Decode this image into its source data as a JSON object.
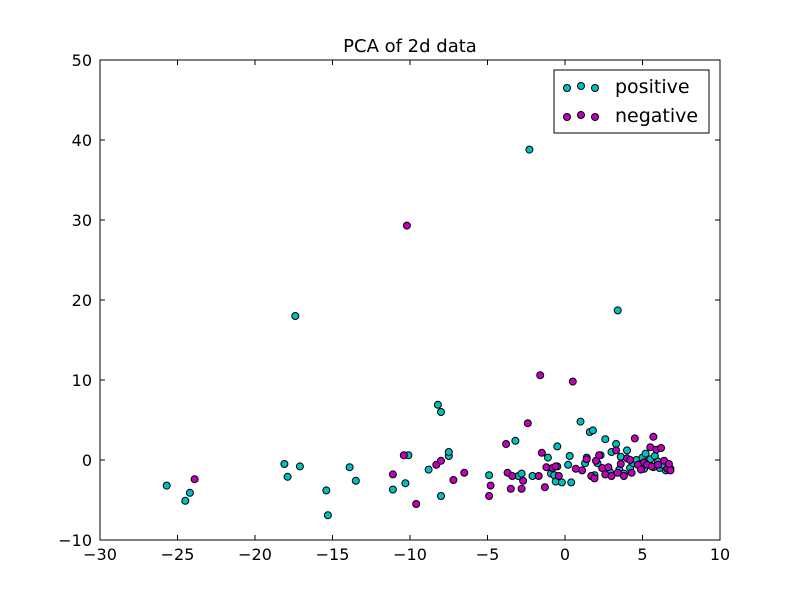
{
  "chart_data": {
    "type": "scatter",
    "title": "PCA of 2d data",
    "xlabel": "",
    "ylabel": "",
    "xlim": [
      -30,
      10
    ],
    "ylim": [
      -10,
      50
    ],
    "xticks": [
      "−30",
      "−25",
      "−20",
      "−15",
      "−10",
      "−5",
      "0",
      "5",
      "10"
    ],
    "yticks": [
      "−10",
      "0",
      "10",
      "20",
      "30",
      "40",
      "50"
    ],
    "grid": false,
    "legend_position": "top-right",
    "series": [
      {
        "name": "positive",
        "color": "#00BFBF",
        "points": [
          [
            -25.7,
            -3.2
          ],
          [
            -24.5,
            -5.1
          ],
          [
            -24.2,
            -4.1
          ],
          [
            -18.1,
            -0.5
          ],
          [
            -17.9,
            -2.1
          ],
          [
            -17.4,
            18.0
          ],
          [
            -17.1,
            -0.8
          ],
          [
            -15.4,
            -3.8
          ],
          [
            -15.3,
            -6.9
          ],
          [
            -13.9,
            -0.9
          ],
          [
            -13.5,
            -2.6
          ],
          [
            -11.1,
            -3.7
          ],
          [
            -10.3,
            -2.9
          ],
          [
            -10.1,
            0.6
          ],
          [
            -8.8,
            -1.2
          ],
          [
            -8.2,
            6.9
          ],
          [
            -8.0,
            6.0
          ],
          [
            -8.0,
            -4.5
          ],
          [
            -7.5,
            0.5
          ],
          [
            -7.5,
            1.0
          ],
          [
            -4.9,
            -1.9
          ],
          [
            -3.2,
            2.4
          ],
          [
            -3.0,
            -2.0
          ],
          [
            -2.8,
            -1.7
          ],
          [
            -2.3,
            38.8
          ],
          [
            -2.1,
            -2.0
          ],
          [
            -1.1,
            0.3
          ],
          [
            -0.9,
            -1.7
          ],
          [
            -0.7,
            -1.9
          ],
          [
            -0.6,
            -2.7
          ],
          [
            -0.5,
            -0.8
          ],
          [
            -0.5,
            1.7
          ],
          [
            -0.2,
            -2.8
          ],
          [
            0.2,
            -0.6
          ],
          [
            0.3,
            0.5
          ],
          [
            0.4,
            -2.8
          ],
          [
            1.0,
            4.8
          ],
          [
            1.3,
            -0.4
          ],
          [
            1.4,
            0.3
          ],
          [
            1.6,
            3.5
          ],
          [
            1.8,
            3.7
          ],
          [
            1.9,
            -1.9
          ],
          [
            2.1,
            -0.4
          ],
          [
            2.3,
            0.6
          ],
          [
            2.6,
            2.6
          ],
          [
            2.9,
            -1.5
          ],
          [
            3.0,
            1.0
          ],
          [
            3.3,
            2.0
          ],
          [
            3.4,
            18.7
          ],
          [
            3.5,
            -1.2
          ],
          [
            3.6,
            0.4
          ],
          [
            3.8,
            -1.7
          ],
          [
            4.0,
            1.2
          ],
          [
            4.2,
            -1.0
          ],
          [
            4.4,
            -0.4
          ],
          [
            4.6,
            0.0
          ],
          [
            4.8,
            -0.6
          ],
          [
            5.0,
            0.3
          ],
          [
            5.1,
            -1.1
          ],
          [
            5.2,
            0.8
          ],
          [
            5.4,
            -0.3
          ],
          [
            5.5,
            0.1
          ],
          [
            5.7,
            -0.9
          ],
          [
            5.8,
            0.5
          ],
          [
            6.0,
            -0.2
          ],
          [
            6.1,
            -1.0
          ],
          [
            6.3,
            -0.6
          ],
          [
            6.5,
            -1.3
          ],
          [
            6.7,
            -0.8
          ],
          [
            6.8,
            -1.1
          ]
        ]
      },
      {
        "name": "negative",
        "color": "#BF00BF",
        "points": [
          [
            -23.9,
            -2.4
          ],
          [
            -11.1,
            -1.8
          ],
          [
            -10.4,
            0.6
          ],
          [
            -10.2,
            29.3
          ],
          [
            -9.6,
            -5.5
          ],
          [
            -8.3,
            -0.6
          ],
          [
            -8.0,
            -0.1
          ],
          [
            -7.2,
            -2.5
          ],
          [
            -6.5,
            -1.6
          ],
          [
            -4.9,
            -4.5
          ],
          [
            -4.8,
            -3.2
          ],
          [
            -3.8,
            2.0
          ],
          [
            -3.7,
            -1.6
          ],
          [
            -3.5,
            -3.6
          ],
          [
            -3.4,
            -2.0
          ],
          [
            -2.8,
            -3.6
          ],
          [
            -2.7,
            -2.6
          ],
          [
            -2.4,
            4.6
          ],
          [
            -1.7,
            -2.0
          ],
          [
            -1.6,
            10.6
          ],
          [
            -1.5,
            0.9
          ],
          [
            -1.3,
            -3.4
          ],
          [
            -1.2,
            -0.9
          ],
          [
            -0.8,
            -1.0
          ],
          [
            -0.6,
            -0.8
          ],
          [
            -0.4,
            -2.0
          ],
          [
            0.5,
            9.8
          ],
          [
            0.7,
            -1.1
          ],
          [
            1.1,
            -1.3
          ],
          [
            1.4,
            0.1
          ],
          [
            1.7,
            -2.0
          ],
          [
            1.9,
            -2.3
          ],
          [
            2.0,
            -0.1
          ],
          [
            2.2,
            0.6
          ],
          [
            2.4,
            -1.0
          ],
          [
            2.6,
            -1.8
          ],
          [
            2.8,
            -0.9
          ],
          [
            3.0,
            -2.0
          ],
          [
            3.3,
            1.2
          ],
          [
            3.4,
            -1.6
          ],
          [
            3.6,
            -0.5
          ],
          [
            3.8,
            -2.0
          ],
          [
            4.0,
            0.2
          ],
          [
            4.2,
            0.0
          ],
          [
            4.3,
            -1.6
          ],
          [
            4.5,
            2.7
          ],
          [
            4.7,
            -0.6
          ],
          [
            4.9,
            -1.2
          ],
          [
            5.1,
            -0.3
          ],
          [
            5.3,
            -0.6
          ],
          [
            5.5,
            1.6
          ],
          [
            5.6,
            -0.8
          ],
          [
            5.7,
            2.9
          ],
          [
            5.9,
            1.3
          ],
          [
            6.0,
            -0.6
          ],
          [
            6.2,
            1.5
          ],
          [
            6.4,
            -0.1
          ],
          [
            6.6,
            -1.1
          ],
          [
            6.7,
            -0.5
          ],
          [
            6.8,
            -1.3
          ]
        ]
      }
    ]
  }
}
